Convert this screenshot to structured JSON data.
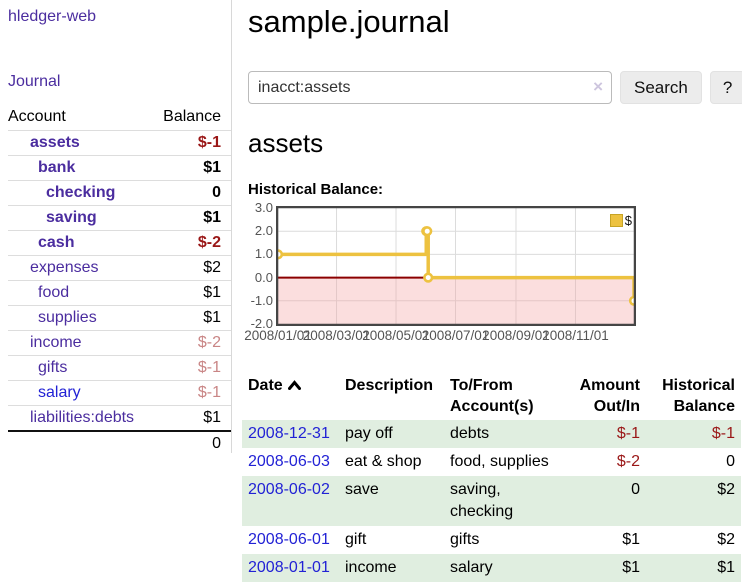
{
  "app": {
    "brand": "hledger-web",
    "nav_journal": "Journal"
  },
  "sidebar": {
    "headers": {
      "account": "Account",
      "balance": "Balance"
    },
    "accounts": [
      {
        "name": "assets",
        "balance": "$-1"
      },
      {
        "name": "bank",
        "balance": "$1"
      },
      {
        "name": "checking",
        "balance": "0"
      },
      {
        "name": "saving",
        "balance": "$1"
      },
      {
        "name": "cash",
        "balance": "$-2"
      },
      {
        "name": "expenses",
        "balance": "$2"
      },
      {
        "name": "food",
        "balance": "$1"
      },
      {
        "name": "supplies",
        "balance": "$1"
      },
      {
        "name": "income",
        "balance": "$-2"
      },
      {
        "name": "gifts",
        "balance": "$-1"
      },
      {
        "name": "salary",
        "balance": "$-1"
      },
      {
        "name": "liabilities:debts",
        "balance": "$1"
      }
    ],
    "total": "0"
  },
  "main": {
    "title": "sample.journal",
    "search": {
      "value": "inacct:assets",
      "clear_label": "×",
      "button_label": "Search",
      "help_label": "?"
    },
    "account_heading": "assets",
    "chart_heading": "Historical Balance:"
  },
  "chart_data": {
    "type": "line",
    "style": "step",
    "title": "Historical Balance:",
    "series": [
      {
        "name": "$",
        "color": "#edc240",
        "points": [
          [
            "2008-01-01",
            1
          ],
          [
            "2008-06-01",
            2
          ],
          [
            "2008-06-02",
            2
          ],
          [
            "2008-06-03",
            0
          ],
          [
            "2008-12-31",
            -1
          ]
        ]
      }
    ],
    "x_range": [
      "2008-01-01",
      "2008-12-31"
    ],
    "ylim": [
      -2,
      3
    ],
    "y_ticks": [
      {
        "value": 3,
        "label": "3.0"
      },
      {
        "value": 2,
        "label": "2.0"
      },
      {
        "value": 1,
        "label": "1.0"
      },
      {
        "value": 0,
        "label": "0.0"
      },
      {
        "value": -1,
        "label": "-1.0"
      },
      {
        "value": -2,
        "label": "-2.0"
      }
    ],
    "x_ticks": [
      {
        "date": "2008-01-01",
        "label": "2008/01/01"
      },
      {
        "date": "2008-03-01",
        "label": "2008/03/01"
      },
      {
        "date": "2008-05-01",
        "label": "2008/05/01"
      },
      {
        "date": "2008-07-01",
        "label": "2008/07/01"
      },
      {
        "date": "2008-09-01",
        "label": "2008/09/01"
      },
      {
        "date": "2008-11-01",
        "label": "2008/11/01"
      }
    ],
    "legend": {
      "label": "$",
      "position": "top-right"
    },
    "grid": true,
    "negative_region": true,
    "zero_line": true
  },
  "register": {
    "headers": {
      "date": "Date",
      "sort_icon": "chevron-up",
      "description": "Description",
      "accounts": "To/From Account(s)",
      "amount": "Amount Out/In",
      "balance": "Historical Balance"
    },
    "rows": [
      {
        "date": "2008-12-31",
        "description": "pay off",
        "accounts": "debts",
        "amount": "$-1",
        "balance": "$-1"
      },
      {
        "date": "2008-06-03",
        "description": "eat & shop",
        "accounts": "food, supplies",
        "amount": "$-2",
        "balance": "0"
      },
      {
        "date": "2008-06-02",
        "description": "save",
        "accounts": "saving, checking",
        "amount": "0",
        "balance": "$2"
      },
      {
        "date": "2008-06-01",
        "description": "gift",
        "accounts": "gifts",
        "amount": "$1",
        "balance": "$2"
      },
      {
        "date": "2008-01-01",
        "description": "income",
        "accounts": "salary",
        "amount": "$1",
        "balance": "$1"
      }
    ]
  },
  "colors": {
    "link_purple": "#4b2d9f",
    "link_blue": "#2222d5",
    "negative_strong": "#9a1717",
    "negative_dim": "#c98585",
    "row_stripe_green": "#e0eee0",
    "chart_line": "#edc240",
    "chart_zero_line": "#8b0000",
    "chart_negative_fill": "#fcdede",
    "chart_border": "#454545"
  }
}
